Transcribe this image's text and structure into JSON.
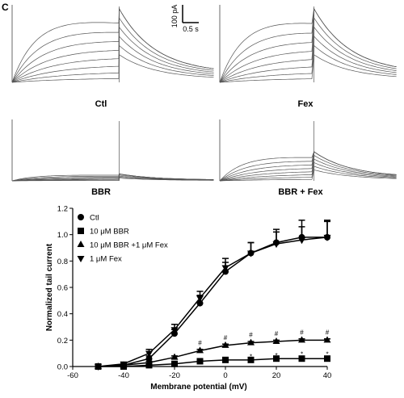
{
  "figure": {
    "panel_label": "C",
    "scale_bar": {
      "current": "100 pA",
      "time": "0.5 s"
    },
    "traces": [
      {
        "label": "Ctl"
      },
      {
        "label": "Fex"
      },
      {
        "label": "BBR"
      },
      {
        "label": "BBR + Fex"
      }
    ]
  },
  "chart_data": {
    "type": "line",
    "x_label": "Membrane potential (mV)",
    "y_label": "Normalized tail current",
    "x": [
      -50,
      -40,
      -30,
      -20,
      -10,
      0,
      10,
      20,
      30,
      40
    ],
    "series": [
      {
        "name": "Ctl",
        "color": "#000000",
        "marker": "circle",
        "values": [
          0,
          0.01,
          0.06,
          0.25,
          0.48,
          0.72,
          0.86,
          0.94,
          0.98,
          0.98
        ],
        "errors": [
          0,
          0.01,
          0.02,
          0.03,
          0.06,
          0.07,
          0.08,
          0.1,
          0.13,
          0.13
        ]
      },
      {
        "name": "10 μM BBR",
        "color": "#000000",
        "marker": "square",
        "values": [
          0,
          0,
          0.01,
          0.02,
          0.04,
          0.05,
          0.05,
          0.06,
          0.06,
          0.06
        ],
        "errors": [
          0,
          0,
          0,
          0.01,
          0.01,
          0.01,
          0.01,
          0.01,
          0.01,
          0.01
        ]
      },
      {
        "name": "10 μM BBR +1 μM Fex",
        "color": "#000000",
        "marker": "triangle-up",
        "values": [
          0,
          0.01,
          0.03,
          0.07,
          0.12,
          0.16,
          0.18,
          0.19,
          0.2,
          0.2
        ],
        "errors": [
          0,
          0,
          0.01,
          0.01,
          0.01,
          0.01,
          0.01,
          0.01,
          0.01,
          0.01
        ]
      },
      {
        "name": "1 μM Fex",
        "color": "#000000",
        "marker": "triangle-down",
        "values": [
          0,
          0.02,
          0.1,
          0.28,
          0.52,
          0.75,
          0.86,
          0.93,
          0.96,
          0.98
        ],
        "errors": [
          0,
          0.01,
          0.03,
          0.04,
          0.05,
          0.07,
          0.08,
          0.09,
          0.1,
          0.12
        ]
      }
    ],
    "annotations": [
      {
        "text": "#",
        "x": [
          -10,
          0,
          10,
          20,
          30,
          40
        ]
      },
      {
        "text": "*",
        "x": [
          -10,
          0,
          10,
          20,
          30,
          40
        ]
      }
    ],
    "xlim": [
      -60,
      40
    ],
    "xticks": [
      -60,
      -40,
      -20,
      0,
      20,
      40
    ],
    "ylim": [
      0,
      1.2
    ],
    "yticks": [
      {
        "value": 0,
        "label": "0.0"
      },
      0.2,
      0.4,
      0.6,
      0.8,
      {
        "value": 1,
        "label": "1.0"
      },
      1.2
    ],
    "legend": "upper left",
    "grid": false
  }
}
